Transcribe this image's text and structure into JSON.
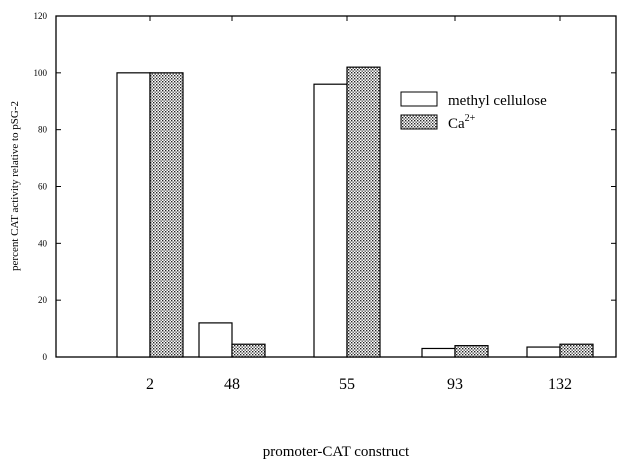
{
  "chart_data": {
    "type": "bar",
    "xlabel": "promoter-CAT construct",
    "ylabel": "percent CAT activity relative to pSG-2",
    "ylim": [
      0,
      120
    ],
    "yticks": [
      "0",
      "20",
      "40",
      "60",
      "80",
      "100",
      "120"
    ],
    "categories": [
      "2",
      "48",
      "55",
      "93",
      "132"
    ],
    "legend_position": "top-right",
    "grid": false,
    "series": [
      {
        "name": "methyl cellulose",
        "pattern": "open",
        "values": [
          100,
          12,
          96,
          3,
          3.5
        ]
      },
      {
        "name": "Ca",
        "name_sup": "2+",
        "pattern": "stippled",
        "values": [
          100,
          4.5,
          102,
          4,
          4.5
        ]
      }
    ]
  }
}
